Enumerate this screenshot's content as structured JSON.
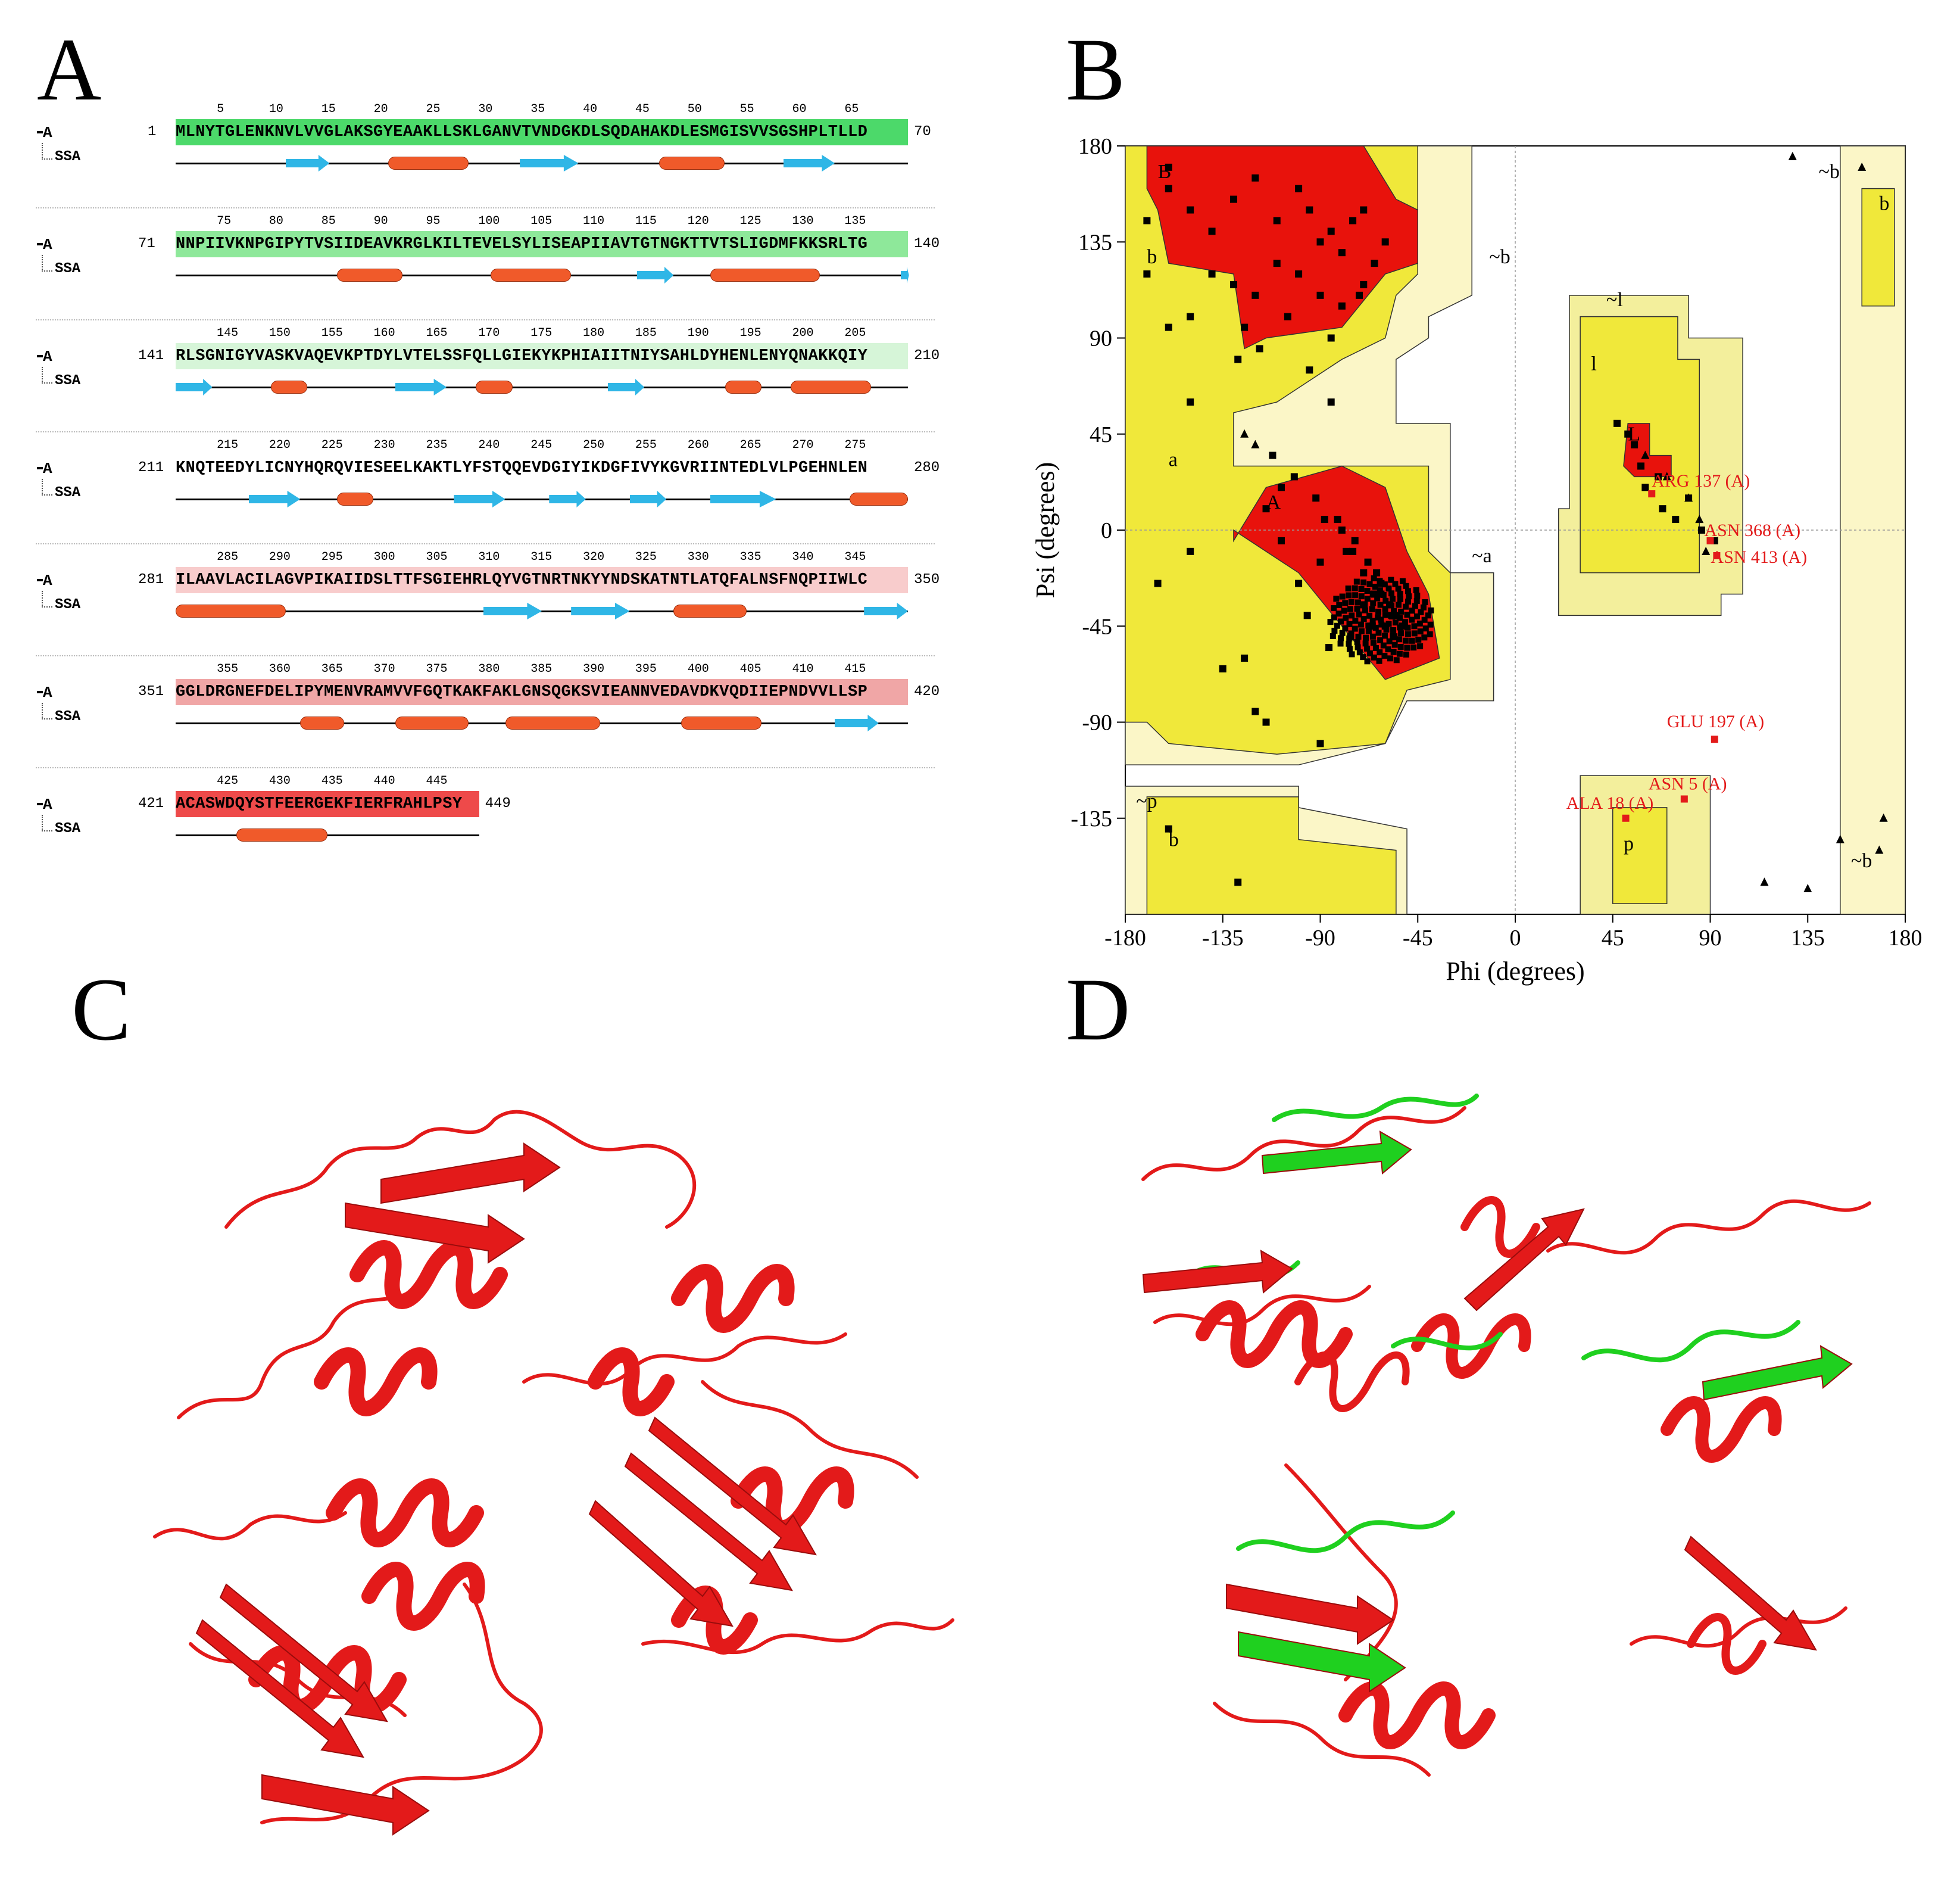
{
  "panels": {
    "a_label": "A",
    "b_label": "B",
    "c_label": "C",
    "d_label": "D"
  },
  "sequence_panel": {
    "chain_label": "A",
    "ssa_label": "SSA",
    "rows": [
      {
        "start": "1",
        "end": "70",
        "sequence": "MLNYTGLENKNVLVVGLAKSGYEAAKLLSKLGANVTVNDGKDLSQDAHAKDLESMGISVVSGSHPLTLLD",
        "ticks": [
          "5",
          "10",
          "15",
          "20",
          "25",
          "30",
          "35",
          "40",
          "45",
          "50",
          "55",
          "60",
          "65"
        ],
        "color": "#4cd96a"
      },
      {
        "start": "71",
        "end": "140",
        "sequence": "NNPIIVKNPGIPYTVSIIDEAVKRGLKILTEVELSYLISEAPIIAVTGTNGKTTVTSLIGDMFKKSRLTG",
        "ticks": [
          "75",
          "80",
          "85",
          "90",
          "95",
          "100",
          "105",
          "110",
          "115",
          "120",
          "125",
          "130",
          "135"
        ],
        "color": "#8ee89a"
      },
      {
        "start": "141",
        "end": "210",
        "sequence": "RLSGNIGYVASKVAQEVKPTDYLVTELSSFQLLGIEKYKPHIAIITNIYSAHLDYHENLENYQNAKKQIY",
        "ticks": [
          "145",
          "150",
          "155",
          "160",
          "165",
          "170",
          "175",
          "180",
          "185",
          "190",
          "195",
          "200",
          "205"
        ],
        "color": "#d6f5d8"
      },
      {
        "start": "211",
        "end": "280",
        "sequence": "KNQTEEDYLICNYHQRQVIESEELKAKTLYFSTQQEVDGIYIKDGFIVYKGVRIINTEDLVLPGEHNLEN",
        "ticks": [
          "215",
          "220",
          "225",
          "230",
          "235",
          "240",
          "245",
          "250",
          "255",
          "260",
          "265",
          "270",
          "275"
        ],
        "color": "#ffffff"
      },
      {
        "start": "281",
        "end": "350",
        "sequence": "ILAAVLACILAGVPIKAIIDSLTTFSGIEHRLQYVGTNRTNKYYNDSKATNTLATQFALNSFNQPIIWLC",
        "ticks": [
          "285",
          "290",
          "295",
          "300",
          "305",
          "310",
          "315",
          "320",
          "325",
          "330",
          "335",
          "340",
          "345"
        ],
        "color": "#f8cccc"
      },
      {
        "start": "351",
        "end": "420",
        "sequence": "GGLDRGNEFDELIPYMENVRAMVVFGQTKAKFAKLGNSQGKSVIEANNVEDAVDKVQDIIEPNDVVLLSP",
        "ticks": [
          "355",
          "360",
          "365",
          "370",
          "375",
          "380",
          "385",
          "390",
          "395",
          "400",
          "405",
          "410",
          "415"
        ],
        "color": "#f0a6a6"
      },
      {
        "start": "421",
        "end": "449",
        "sequence": "ACASWDQYSTFEERGEKFIERFRAHLPSY",
        "ticks": [
          "425",
          "430",
          "435",
          "440",
          "445"
        ],
        "color": "#ee4a4a"
      }
    ]
  },
  "ramachandran": {
    "xlabel": "Phi (degrees)",
    "ylabel": "Psi (degrees)",
    "x_ticks": [
      "-180",
      "-135",
      "-90",
      "-45",
      "0",
      "45",
      "90",
      "135",
      "180"
    ],
    "y_ticks": [
      "180",
      "135",
      "90",
      "45",
      "0",
      "-45",
      "-90",
      "-135"
    ],
    "region_labels": [
      "B",
      "b",
      "~b",
      "A",
      "a",
      "~a",
      "L",
      "l",
      "~l",
      "p",
      "~p",
      "b",
      "~b",
      "b",
      "~b"
    ],
    "outliers": [
      "ARG 137 (A)",
      "ASN 368 (A)",
      "ASN 413 (A)",
      "GLU 197 (A)",
      "ASN 5 (A)",
      "ALA 18 (A)"
    ],
    "colors": {
      "core": "#e8120c",
      "allowed": "#f0e83a",
      "generous": "#f3ef9c",
      "disallowed": "#ffffff",
      "faint": "#fbf6c7"
    }
  },
  "chart_data": {
    "type": "scatter",
    "title": "",
    "xlabel": "Phi (degrees)",
    "ylabel": "Psi (degrees)",
    "xlim": [
      -180,
      180
    ],
    "ylim": [
      -180,
      180
    ],
    "x_ticks": [
      -180,
      -135,
      -90,
      -45,
      0,
      45,
      90,
      135,
      180
    ],
    "y_ticks": [
      -135,
      -90,
      -45,
      0,
      45,
      90,
      135,
      180
    ],
    "series": [
      {
        "name": "",
        "x": [
          -160,
          -150,
          -140,
          -130,
          -120,
          -110,
          -100,
          -95,
          -90,
          -85,
          -80,
          -75,
          -70,
          -65,
          -140,
          -130,
          -120,
          -110,
          -100,
          -90,
          -80,
          -70,
          -150,
          -125,
          -105,
          -85,
          -72,
          -60,
          -160,
          -170,
          -128,
          -118,
          -95,
          -112,
          -102,
          -92,
          -82,
          -74,
          -68,
          -62,
          -58,
          -55,
          -60,
          -65,
          -70,
          -75,
          -80,
          -90,
          -100,
          -108,
          -115,
          -70,
          -62,
          -57,
          -52,
          -56,
          -66,
          -76,
          -86,
          -96,
          -64,
          -78,
          -88,
          -108,
          -150,
          -165,
          -125,
          -135,
          -120,
          -115,
          -90,
          -128,
          -160,
          47,
          52,
          55,
          58,
          60,
          66,
          68,
          74,
          80,
          86,
          92,
          -170,
          -160,
          -150,
          -85
        ],
        "y": [
          160,
          150,
          140,
          155,
          165,
          145,
          160,
          150,
          135,
          140,
          130,
          145,
          150,
          125,
          120,
          115,
          110,
          125,
          120,
          110,
          105,
          115,
          100,
          95,
          100,
          90,
          110,
          135,
          170,
          145,
          80,
          85,
          75,
          35,
          25,
          15,
          5,
          -5,
          -15,
          -25,
          -35,
          -40,
          -45,
          -30,
          -20,
          -10,
          0,
          -15,
          -25,
          -5,
          10,
          -35,
          -30,
          -40,
          -45,
          -50,
          -45,
          -50,
          -55,
          -40,
          -20,
          -10,
          5,
          20,
          -10,
          -25,
          -60,
          -65,
          -85,
          -90,
          -100,
          -165,
          -140,
          50,
          45,
          40,
          30,
          20,
          25,
          10,
          5,
          15,
          0,
          -5,
          120,
          95,
          60,
          60
        ]
      },
      {
        "name": "",
        "x": [
          -120,
          -125,
          60,
          70,
          80,
          85,
          88,
          128,
          160,
          170,
          150,
          168,
          135,
          115
        ],
        "y": [
          40,
          45,
          35,
          25,
          15,
          5,
          -10,
          175,
          170,
          -135,
          -145,
          -150,
          -168,
          -165
        ]
      }
    ],
    "outlier_points": [
      {
        "label": "ARG 137 (A)",
        "x": 63,
        "y": 17
      },
      {
        "label": "ASN 368 (A)",
        "x": 90,
        "y": -5
      },
      {
        "label": "ASN 413 (A)",
        "x": 93,
        "y": -12
      },
      {
        "label": "GLU 197 (A)",
        "x": 92,
        "y": -98
      },
      {
        "label": "ASN 5 (A)",
        "x": 78,
        "y": -126
      },
      {
        "label": "ALA 18 (A)",
        "x": 51,
        "y": -135
      }
    ]
  },
  "structures": {
    "c_color": "#e31a1a",
    "d_colors": [
      "#e31a1a",
      "#1fd01f"
    ]
  }
}
